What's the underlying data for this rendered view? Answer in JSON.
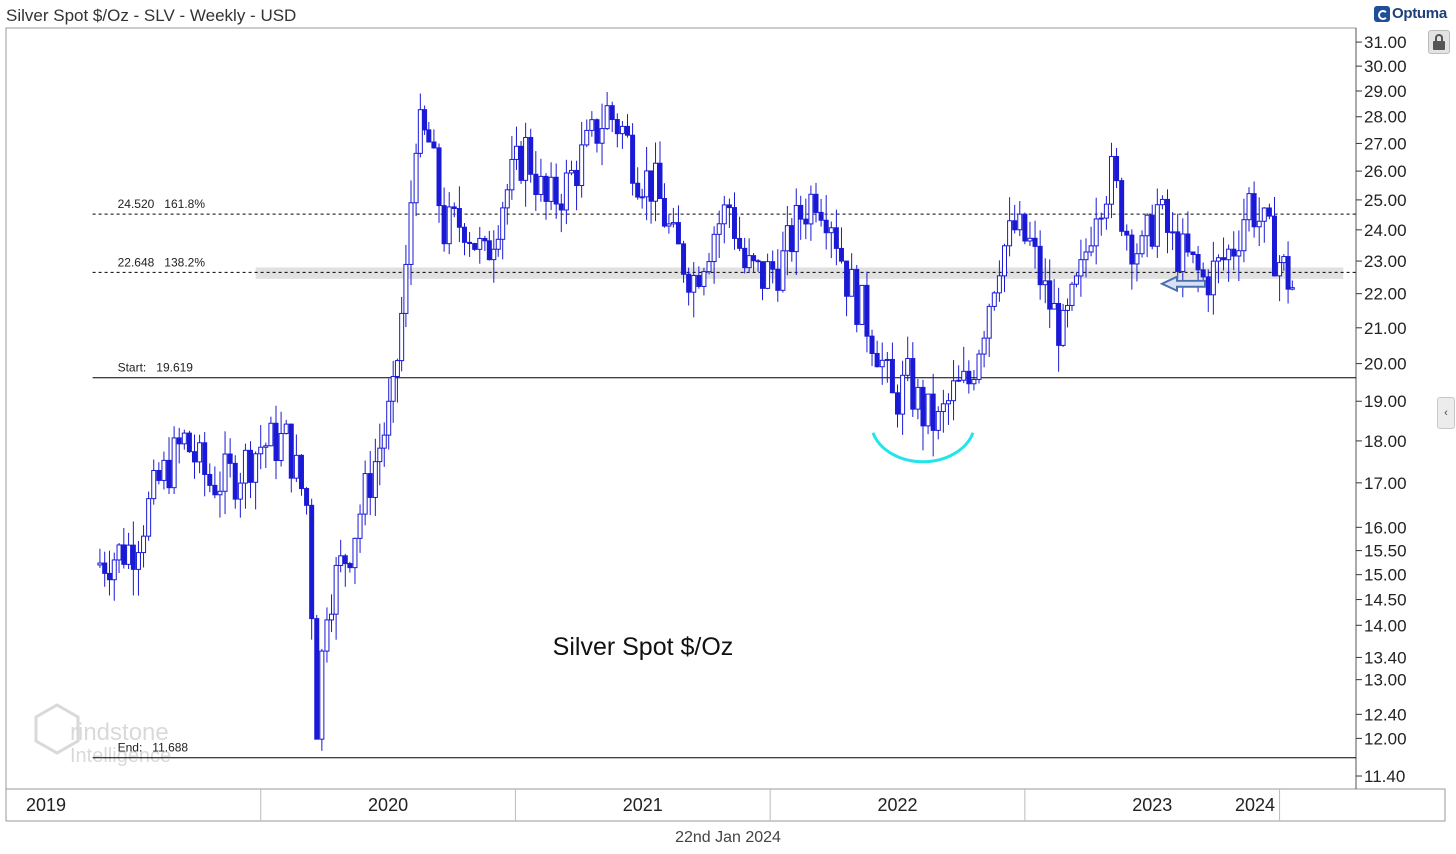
{
  "header": {
    "title": "Silver Spot $/Oz - SLV - Weekly - USD",
    "brand": "Optuma"
  },
  "footer": {
    "date": "22nd Jan 2024"
  },
  "watermark": {
    "text": "rindstone",
    "text2": "Intelligence"
  },
  "colors": {
    "candle": "#1a1ad6",
    "grid": "#000000",
    "arc": "#22e4ea",
    "arrow": "#4a6fb0",
    "zone": "#d9d9d9"
  },
  "chart_data": {
    "type": "candlestick",
    "title": "Silver Spot $/Oz",
    "y_scale": "log",
    "ylim": [
      11.2,
      31.6
    ],
    "y_ticks": [
      31.0,
      30.0,
      29.0,
      28.0,
      27.0,
      26.0,
      25.0,
      24.0,
      23.0,
      22.0,
      21.0,
      20.0,
      19.0,
      18.0,
      17.0,
      16.0,
      15.5,
      15.0,
      14.5,
      14.0,
      13.4,
      13.0,
      12.4,
      12.0,
      11.4
    ],
    "x_labels": [
      "2019",
      "2020",
      "2021",
      "2022",
      "2023",
      "2024"
    ],
    "x_range": [
      2019.0,
      2024.3
    ],
    "levels": [
      {
        "name": "fib-161.8",
        "value": 24.52,
        "label": "24.520   161.8%",
        "style": "dotted"
      },
      {
        "name": "fib-138.2",
        "value": 22.648,
        "label": "22.648   138.2%",
        "style": "dotted"
      },
      {
        "name": "start",
        "value": 19.619,
        "label": "Start:   19.619",
        "style": "solid"
      },
      {
        "name": "end",
        "value": 11.688,
        "label": "End:   11.688",
        "style": "solid"
      }
    ],
    "zone": [
      22.45,
      22.8
    ],
    "annotations": {
      "arrow_value": 22.3,
      "arc_center_value": 18.3
    },
    "closes": [
      {
        "t": 2019.35,
        "c": 15.2
      },
      {
        "t": 2019.5,
        "c": 15.6
      },
      {
        "t": 2019.6,
        "c": 17.0
      },
      {
        "t": 2019.7,
        "c": 18.0
      },
      {
        "t": 2019.8,
        "c": 17.0
      },
      {
        "t": 2019.9,
        "c": 17.2
      },
      {
        "t": 2020.0,
        "c": 17.9
      },
      {
        "t": 2020.1,
        "c": 18.0
      },
      {
        "t": 2020.18,
        "c": 16.5
      },
      {
        "t": 2020.22,
        "c": 12.3
      },
      {
        "t": 2020.26,
        "c": 14.5
      },
      {
        "t": 2020.35,
        "c": 15.6
      },
      {
        "t": 2020.45,
        "c": 17.5
      },
      {
        "t": 2020.52,
        "c": 19.0
      },
      {
        "t": 2020.57,
        "c": 22.5
      },
      {
        "t": 2020.61,
        "c": 27.5
      },
      {
        "t": 2020.66,
        "c": 27.0
      },
      {
        "t": 2020.72,
        "c": 24.0
      },
      {
        "t": 2020.8,
        "c": 24.3
      },
      {
        "t": 2020.88,
        "c": 23.0
      },
      {
        "t": 2020.95,
        "c": 25.0
      },
      {
        "t": 2021.04,
        "c": 26.8
      },
      {
        "t": 2021.12,
        "c": 24.8
      },
      {
        "t": 2021.2,
        "c": 25.5
      },
      {
        "t": 2021.28,
        "c": 26.8
      },
      {
        "t": 2021.36,
        "c": 28.2
      },
      {
        "t": 2021.42,
        "c": 27.5
      },
      {
        "t": 2021.48,
        "c": 26.0
      },
      {
        "t": 2021.55,
        "c": 25.4
      },
      {
        "t": 2021.62,
        "c": 23.5
      },
      {
        "t": 2021.7,
        "c": 22.5
      },
      {
        "t": 2021.78,
        "c": 24.0
      },
      {
        "t": 2021.84,
        "c": 24.8
      },
      {
        "t": 2021.9,
        "c": 22.8
      },
      {
        "t": 2021.97,
        "c": 22.5
      },
      {
        "t": 2022.05,
        "c": 23.0
      },
      {
        "t": 2022.12,
        "c": 24.5
      },
      {
        "t": 2022.18,
        "c": 25.3
      },
      {
        "t": 2022.24,
        "c": 24.5
      },
      {
        "t": 2022.3,
        "c": 22.5
      },
      {
        "t": 2022.36,
        "c": 21.5
      },
      {
        "t": 2022.42,
        "c": 20.5
      },
      {
        "t": 2022.48,
        "c": 19.0
      },
      {
        "t": 2022.54,
        "c": 19.5
      },
      {
        "t": 2022.6,
        "c": 18.7
      },
      {
        "t": 2022.66,
        "c": 18.4
      },
      {
        "t": 2022.72,
        "c": 19.2
      },
      {
        "t": 2022.78,
        "c": 19.5
      },
      {
        "t": 2022.84,
        "c": 21.2
      },
      {
        "t": 2022.9,
        "c": 23.2
      },
      {
        "t": 2022.96,
        "c": 24.0
      },
      {
        "t": 2023.02,
        "c": 23.5
      },
      {
        "t": 2023.08,
        "c": 22.0
      },
      {
        "t": 2023.15,
        "c": 20.8
      },
      {
        "t": 2023.22,
        "c": 22.5
      },
      {
        "t": 2023.28,
        "c": 25.0
      },
      {
        "t": 2023.34,
        "c": 25.8
      },
      {
        "t": 2023.4,
        "c": 24.0
      },
      {
        "t": 2023.46,
        "c": 23.2
      },
      {
        "t": 2023.52,
        "c": 24.7
      },
      {
        "t": 2023.58,
        "c": 23.5
      },
      {
        "t": 2023.64,
        "c": 23.0
      },
      {
        "t": 2023.7,
        "c": 22.4
      },
      {
        "t": 2023.76,
        "c": 22.8
      },
      {
        "t": 2023.82,
        "c": 23.5
      },
      {
        "t": 2023.88,
        "c": 25.0
      },
      {
        "t": 2023.94,
        "c": 24.0
      },
      {
        "t": 2024.0,
        "c": 23.0
      },
      {
        "t": 2024.05,
        "c": 22.2
      }
    ]
  }
}
